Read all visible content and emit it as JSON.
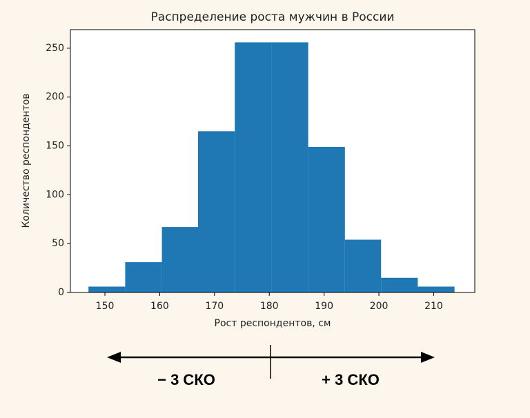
{
  "chart_data": {
    "type": "histogram",
    "title": "Распределение роста мужчин в России",
    "xlabel": "Рост респондентов, см",
    "ylabel": "Количество респондентов",
    "bins": [
      147.0,
      153.7,
      160.4,
      167.0,
      173.7,
      180.4,
      187.1,
      193.8,
      200.4,
      207.1,
      213.8
    ],
    "values": [
      6,
      31,
      67,
      165,
      256,
      256,
      149,
      54,
      15,
      6
    ],
    "color": "#1f77b4",
    "xlim": [
      143.7,
      217.5
    ],
    "ylim": [
      0,
      269
    ],
    "xticks": [
      150,
      160,
      170,
      180,
      190,
      200,
      210
    ],
    "yticks": [
      0,
      50,
      100,
      150,
      200,
      250
    ],
    "annotations": [
      "− 3 СКО",
      "+ 3 СКО"
    ]
  }
}
